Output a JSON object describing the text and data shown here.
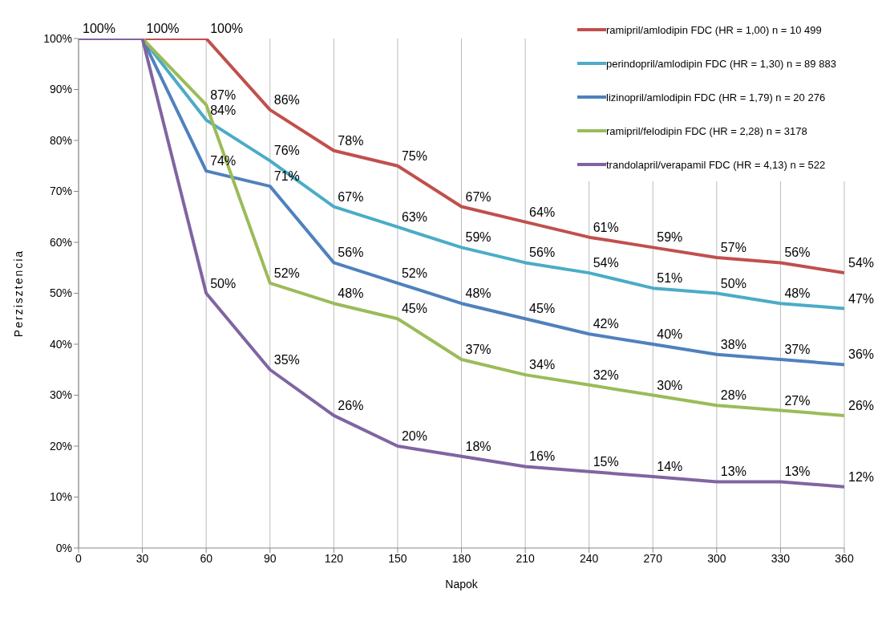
{
  "chart_data": {
    "type": "line",
    "xlabel": "Napok",
    "ylabel": "Perzisztencia",
    "x": [
      0,
      30,
      60,
      90,
      120,
      150,
      180,
      210,
      240,
      270,
      300,
      330,
      360
    ],
    "xlim": [
      0,
      360
    ],
    "xticks": [
      0,
      30,
      60,
      90,
      120,
      150,
      180,
      210,
      240,
      270,
      300,
      330,
      360
    ],
    "ylim": [
      0,
      100
    ],
    "yticks": [
      {
        "value": 0,
        "label": "0%"
      },
      {
        "value": 10,
        "label": "10%"
      },
      {
        "value": 20,
        "label": "20%"
      },
      {
        "value": 30,
        "label": "30%"
      },
      {
        "value": 40,
        "label": "40%"
      },
      {
        "value": 50,
        "label": "50%"
      },
      {
        "value": 60,
        "label": "60%"
      },
      {
        "value": 70,
        "label": "70%"
      },
      {
        "value": 80,
        "label": "80%"
      },
      {
        "value": 90,
        "label": "90%"
      },
      {
        "value": 100,
        "label": "100%"
      }
    ],
    "grid": "x",
    "legend": "top right",
    "marker": "none",
    "line_style": "solid",
    "series": [
      {
        "name": "ramipril/amlodipin FDC (HR = 1,00) n = 10 499",
        "color": "#c0504d",
        "values": [
          100,
          100,
          100,
          86,
          78,
          75,
          67,
          64,
          61,
          59,
          57,
          56,
          54
        ],
        "value_labels": [
          "100%",
          "100%",
          "100%",
          "86%",
          "78%",
          "75%",
          "67%",
          "64%",
          "61%",
          "59%",
          "57%",
          "56%",
          "54%"
        ]
      },
      {
        "name": "perindopril/amlodipin FDC (HR = 1,30) n = 89 883",
        "color": "#4bacc6",
        "values": [
          100,
          100,
          84,
          76,
          67,
          63,
          59,
          56,
          54,
          51,
          50,
          48,
          47
        ],
        "value_labels": [
          null,
          null,
          "84%",
          "76%",
          "67%",
          "63%",
          "59%",
          "56%",
          "54%",
          "51%",
          "50%",
          "48%",
          "47%"
        ]
      },
      {
        "name": "lizinopril/amlodipin FDC (HR = 1,79) n = 20 276",
        "color": "#4f81bd",
        "values": [
          100,
          100,
          74,
          71,
          56,
          52,
          48,
          45,
          42,
          40,
          38,
          37,
          36
        ],
        "value_labels": [
          null,
          null,
          "74%",
          "71%",
          "56%",
          "52%",
          "48%",
          "45%",
          "42%",
          "40%",
          "38%",
          "37%",
          "36%"
        ]
      },
      {
        "name": "ramipril/felodipin FDC (HR = 2,28) n = 3178",
        "color": "#9bbb59",
        "values": [
          100,
          100,
          87,
          52,
          48,
          45,
          37,
          34,
          32,
          30,
          28,
          27,
          26
        ],
        "value_labels": [
          null,
          null,
          "87%",
          "52%",
          "48%",
          "45%",
          "37%",
          "34%",
          "32%",
          "30%",
          "28%",
          "27%",
          "26%"
        ]
      },
      {
        "name": "trandolapril/verapamil FDC (HR = 4,13) n = 522",
        "color": "#8064a2",
        "values": [
          100,
          100,
          50,
          35,
          26,
          20,
          18,
          16,
          15,
          14,
          13,
          13,
          12
        ],
        "value_labels": [
          null,
          null,
          "50%",
          "35%",
          "26%",
          "20%",
          "18%",
          "16%",
          "15%",
          "14%",
          "13%",
          "13%",
          "12%"
        ]
      }
    ]
  }
}
